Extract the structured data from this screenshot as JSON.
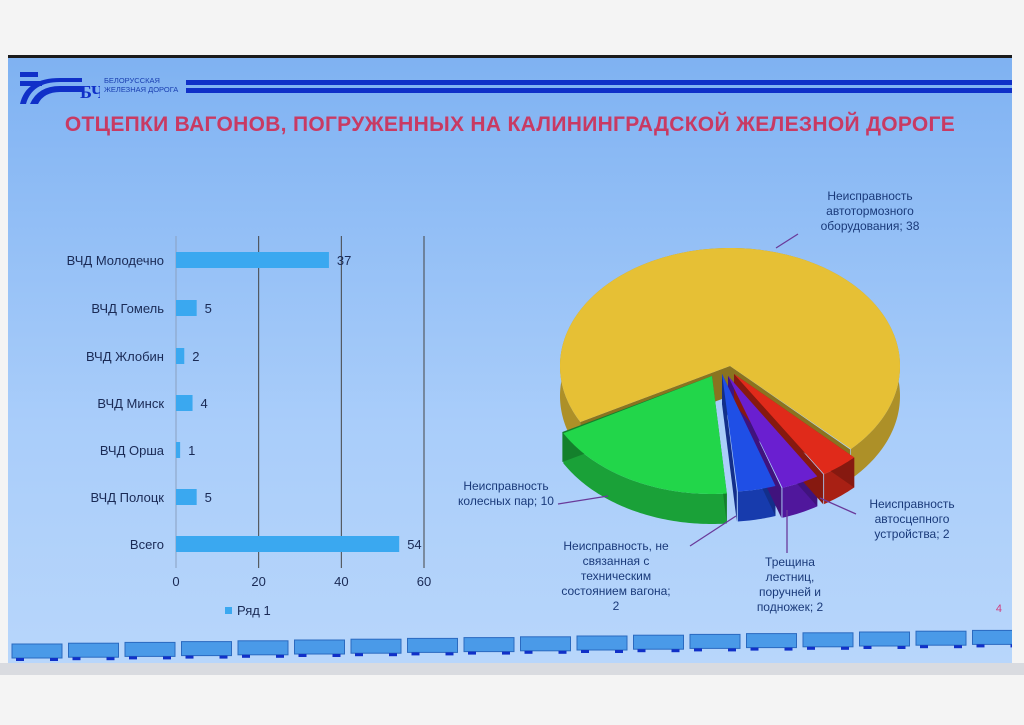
{
  "header": {
    "logo_mark": "БЧ",
    "logo_line1": "БЕЛОРУССКАЯ",
    "logo_line2": "ЖЕЛЕЗНАЯ ДОРОГА",
    "title": "ОТЦЕПКИ ВАГОНОВ, ПОГРУЖЕННЫХ НА  КАЛИНИНГРАДСКОЙ ЖЕЛЕЗНОЙ ДОРОГЕ"
  },
  "slide_number": "4",
  "colors": {
    "bar": "#3aa8f0",
    "title": "#c83a63",
    "accent": "#1030c8"
  },
  "chart_data": [
    {
      "type": "bar",
      "orientation": "horizontal",
      "categories": [
        "ВЧД Молодечно",
        "ВЧД Гомель",
        "ВЧД Жлобин",
        "ВЧД Минск",
        "ВЧД Орша",
        "ВЧД Полоцк",
        "Всего"
      ],
      "series": [
        {
          "name": "Ряд 1",
          "values": [
            37,
            5,
            2,
            4,
            1,
            5,
            54
          ]
        }
      ],
      "xlim": [
        0,
        60
      ],
      "xticks": [
        "0",
        "20",
        "40",
        "60"
      ],
      "grid": true,
      "legend": "bottom",
      "data_labels": true
    },
    {
      "type": "pie",
      "style": "3d-exploded",
      "slices": [
        {
          "label": "Неисправность автотормозного оборудования; 38",
          "lines": [
            "Неисправность",
            "автотормозного",
            "оборудования; 38"
          ],
          "value": 38,
          "color": "#e6c035"
        },
        {
          "label": "Неисправность колесных пар; 10",
          "lines": [
            "Неисправность",
            "колесных пар; 10"
          ],
          "value": 10,
          "color": "#22d64a"
        },
        {
          "label": "Неисправность, не связанная с техническим состоянием вагона; 2",
          "lines": [
            "Неисправность, не",
            "связанная с",
            "техническим",
            "состоянием вагона;",
            "2"
          ],
          "value": 2,
          "color": "#1f4fe6"
        },
        {
          "label": "Трещина лестниц, поручней и подножек; 2",
          "lines": [
            "Трещина",
            "лестниц,",
            "поручней и",
            "подножек; 2"
          ],
          "value": 2,
          "color": "#6a1fd0"
        },
        {
          "label": "Неисправность автосцепного устройства; 2",
          "lines": [
            "Неисправность",
            "автосцепного",
            "устройства; 2"
          ],
          "value": 2,
          "color": "#e02a1a"
        }
      ]
    }
  ]
}
